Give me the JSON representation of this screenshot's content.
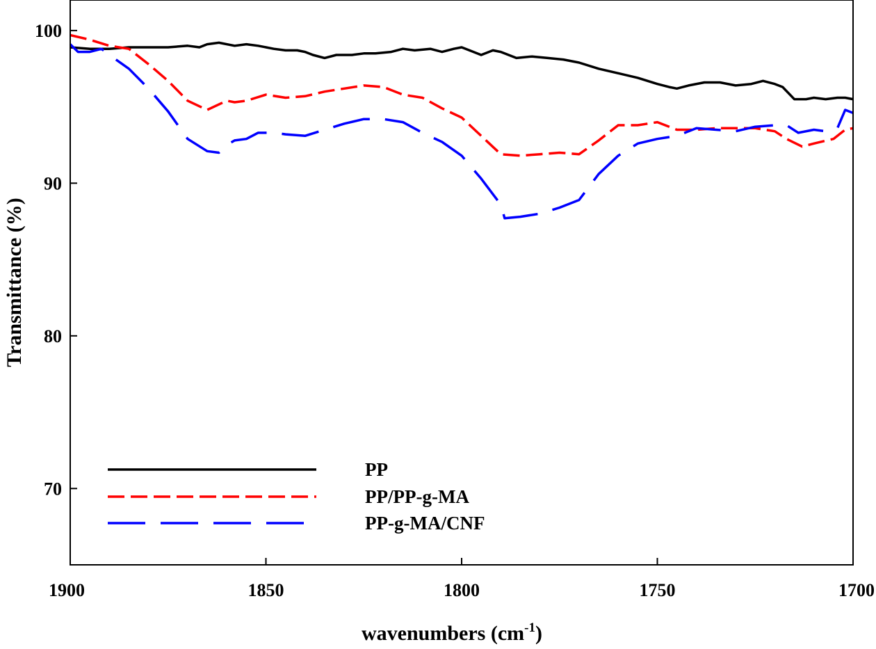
{
  "chart_data": {
    "type": "line",
    "xlabel": "wavenumbers (cm",
    "xlabel_sup": "-1",
    "xlabel_suffix": ")",
    "ylabel": "Transmittance (%)",
    "xlim": [
      1900,
      1700
    ],
    "ylim": [
      65,
      102
    ],
    "x_reversed": true,
    "x_ticks": [
      1900,
      1850,
      1800,
      1750,
      1700
    ],
    "y_ticks": [
      70,
      80,
      90,
      100
    ],
    "grid": false,
    "legend_position": "bottom-left",
    "series": [
      {
        "name": "PP",
        "color": "#000000",
        "dash": "solid",
        "x": [
          1900,
          1895,
          1890,
          1885,
          1880,
          1875,
          1870,
          1867,
          1865,
          1862,
          1858,
          1855,
          1852,
          1848,
          1845,
          1842,
          1840,
          1838,
          1835,
          1832,
          1828,
          1825,
          1822,
          1818,
          1815,
          1812,
          1808,
          1805,
          1802,
          1800,
          1798,
          1795,
          1792,
          1790,
          1786,
          1782,
          1778,
          1774,
          1770,
          1765,
          1760,
          1755,
          1750,
          1747,
          1745,
          1742,
          1738,
          1734,
          1730,
          1726,
          1723,
          1720,
          1718,
          1715,
          1712,
          1710,
          1707,
          1704,
          1702,
          1700
        ],
        "values": [
          98.9,
          98.8,
          98.8,
          98.9,
          98.9,
          98.9,
          99.0,
          98.9,
          99.1,
          99.2,
          99.0,
          99.1,
          99.0,
          98.8,
          98.7,
          98.7,
          98.6,
          98.4,
          98.2,
          98.4,
          98.4,
          98.5,
          98.5,
          98.6,
          98.8,
          98.7,
          98.8,
          98.6,
          98.8,
          98.9,
          98.7,
          98.4,
          98.7,
          98.6,
          98.2,
          98.3,
          98.2,
          98.1,
          97.9,
          97.5,
          97.2,
          96.9,
          96.5,
          96.3,
          96.2,
          96.4,
          96.6,
          96.6,
          96.4,
          96.5,
          96.7,
          96.5,
          96.3,
          95.5,
          95.5,
          95.6,
          95.5,
          95.6,
          95.6,
          95.5
        ]
      },
      {
        "name": "PP/PP-g-MA",
        "color": "#ff0000",
        "dash": "short",
        "x": [
          1900,
          1895,
          1890,
          1885,
          1880,
          1875,
          1870,
          1865,
          1860,
          1858,
          1855,
          1850,
          1845,
          1840,
          1835,
          1830,
          1825,
          1820,
          1815,
          1810,
          1805,
          1800,
          1795,
          1790,
          1785,
          1780,
          1775,
          1770,
          1765,
          1760,
          1755,
          1750,
          1745,
          1740,
          1735,
          1730,
          1725,
          1720,
          1717,
          1713,
          1710,
          1705,
          1702,
          1700
        ],
        "values": [
          99.7,
          99.4,
          99.0,
          98.8,
          97.8,
          96.7,
          95.4,
          94.8,
          95.4,
          95.3,
          95.4,
          95.8,
          95.6,
          95.7,
          96.0,
          96.2,
          96.4,
          96.3,
          95.8,
          95.6,
          94.9,
          94.3,
          93.1,
          91.9,
          91.8,
          91.9,
          92.0,
          91.9,
          92.8,
          93.8,
          93.8,
          94.0,
          93.5,
          93.5,
          93.6,
          93.6,
          93.6,
          93.4,
          92.9,
          92.4,
          92.6,
          92.9,
          93.5,
          93.6
        ]
      },
      {
        "name": "PP-g-MA/CNF",
        "color": "#0000ff",
        "dash": "long",
        "x": [
          1900,
          1898,
          1895,
          1892,
          1890,
          1885,
          1880,
          1875,
          1870,
          1865,
          1862,
          1860,
          1858,
          1855,
          1852,
          1848,
          1845,
          1840,
          1835,
          1830,
          1825,
          1820,
          1815,
          1810,
          1805,
          1800,
          1795,
          1790,
          1789,
          1785,
          1780,
          1775,
          1770,
          1765,
          1760,
          1755,
          1750,
          1745,
          1740,
          1735,
          1730,
          1725,
          1720,
          1717,
          1714,
          1710,
          1707,
          1704,
          1702,
          1700
        ],
        "values": [
          99.1,
          98.6,
          98.6,
          98.8,
          98.4,
          97.5,
          96.2,
          94.7,
          92.9,
          92.1,
          92.0,
          92.5,
          92.8,
          92.9,
          93.3,
          93.3,
          93.2,
          93.1,
          93.5,
          93.9,
          94.2,
          94.2,
          94.0,
          93.3,
          92.7,
          91.8,
          90.3,
          88.6,
          87.7,
          87.8,
          88.0,
          88.4,
          88.9,
          90.6,
          91.8,
          92.6,
          92.9,
          93.1,
          93.6,
          93.5,
          93.4,
          93.7,
          93.8,
          93.8,
          93.3,
          93.5,
          93.4,
          93.6,
          94.8,
          94.6
        ]
      }
    ]
  }
}
